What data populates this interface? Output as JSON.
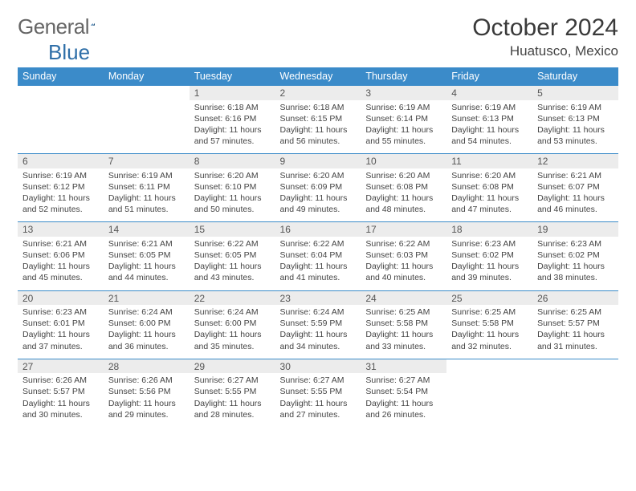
{
  "brand": {
    "part1": "General",
    "part2": "Blue"
  },
  "title": "October 2024",
  "location": "Huatusco, Mexico",
  "colors": {
    "header_bg": "#3b8bc9",
    "header_text": "#ffffff",
    "daynum_bg": "#ececec",
    "row_border": "#3b8bc9",
    "text": "#444444",
    "page_bg": "#ffffff"
  },
  "weekdays": [
    "Sunday",
    "Monday",
    "Tuesday",
    "Wednesday",
    "Thursday",
    "Friday",
    "Saturday"
  ],
  "weeks": [
    [
      null,
      null,
      {
        "n": "1",
        "sr": "Sunrise: 6:18 AM",
        "ss": "Sunset: 6:16 PM",
        "dl": "Daylight: 11 hours and 57 minutes."
      },
      {
        "n": "2",
        "sr": "Sunrise: 6:18 AM",
        "ss": "Sunset: 6:15 PM",
        "dl": "Daylight: 11 hours and 56 minutes."
      },
      {
        "n": "3",
        "sr": "Sunrise: 6:19 AM",
        "ss": "Sunset: 6:14 PM",
        "dl": "Daylight: 11 hours and 55 minutes."
      },
      {
        "n": "4",
        "sr": "Sunrise: 6:19 AM",
        "ss": "Sunset: 6:13 PM",
        "dl": "Daylight: 11 hours and 54 minutes."
      },
      {
        "n": "5",
        "sr": "Sunrise: 6:19 AM",
        "ss": "Sunset: 6:13 PM",
        "dl": "Daylight: 11 hours and 53 minutes."
      }
    ],
    [
      {
        "n": "6",
        "sr": "Sunrise: 6:19 AM",
        "ss": "Sunset: 6:12 PM",
        "dl": "Daylight: 11 hours and 52 minutes."
      },
      {
        "n": "7",
        "sr": "Sunrise: 6:19 AM",
        "ss": "Sunset: 6:11 PM",
        "dl": "Daylight: 11 hours and 51 minutes."
      },
      {
        "n": "8",
        "sr": "Sunrise: 6:20 AM",
        "ss": "Sunset: 6:10 PM",
        "dl": "Daylight: 11 hours and 50 minutes."
      },
      {
        "n": "9",
        "sr": "Sunrise: 6:20 AM",
        "ss": "Sunset: 6:09 PM",
        "dl": "Daylight: 11 hours and 49 minutes."
      },
      {
        "n": "10",
        "sr": "Sunrise: 6:20 AM",
        "ss": "Sunset: 6:08 PM",
        "dl": "Daylight: 11 hours and 48 minutes."
      },
      {
        "n": "11",
        "sr": "Sunrise: 6:20 AM",
        "ss": "Sunset: 6:08 PM",
        "dl": "Daylight: 11 hours and 47 minutes."
      },
      {
        "n": "12",
        "sr": "Sunrise: 6:21 AM",
        "ss": "Sunset: 6:07 PM",
        "dl": "Daylight: 11 hours and 46 minutes."
      }
    ],
    [
      {
        "n": "13",
        "sr": "Sunrise: 6:21 AM",
        "ss": "Sunset: 6:06 PM",
        "dl": "Daylight: 11 hours and 45 minutes."
      },
      {
        "n": "14",
        "sr": "Sunrise: 6:21 AM",
        "ss": "Sunset: 6:05 PM",
        "dl": "Daylight: 11 hours and 44 minutes."
      },
      {
        "n": "15",
        "sr": "Sunrise: 6:22 AM",
        "ss": "Sunset: 6:05 PM",
        "dl": "Daylight: 11 hours and 43 minutes."
      },
      {
        "n": "16",
        "sr": "Sunrise: 6:22 AM",
        "ss": "Sunset: 6:04 PM",
        "dl": "Daylight: 11 hours and 41 minutes."
      },
      {
        "n": "17",
        "sr": "Sunrise: 6:22 AM",
        "ss": "Sunset: 6:03 PM",
        "dl": "Daylight: 11 hours and 40 minutes."
      },
      {
        "n": "18",
        "sr": "Sunrise: 6:23 AM",
        "ss": "Sunset: 6:02 PM",
        "dl": "Daylight: 11 hours and 39 minutes."
      },
      {
        "n": "19",
        "sr": "Sunrise: 6:23 AM",
        "ss": "Sunset: 6:02 PM",
        "dl": "Daylight: 11 hours and 38 minutes."
      }
    ],
    [
      {
        "n": "20",
        "sr": "Sunrise: 6:23 AM",
        "ss": "Sunset: 6:01 PM",
        "dl": "Daylight: 11 hours and 37 minutes."
      },
      {
        "n": "21",
        "sr": "Sunrise: 6:24 AM",
        "ss": "Sunset: 6:00 PM",
        "dl": "Daylight: 11 hours and 36 minutes."
      },
      {
        "n": "22",
        "sr": "Sunrise: 6:24 AM",
        "ss": "Sunset: 6:00 PM",
        "dl": "Daylight: 11 hours and 35 minutes."
      },
      {
        "n": "23",
        "sr": "Sunrise: 6:24 AM",
        "ss": "Sunset: 5:59 PM",
        "dl": "Daylight: 11 hours and 34 minutes."
      },
      {
        "n": "24",
        "sr": "Sunrise: 6:25 AM",
        "ss": "Sunset: 5:58 PM",
        "dl": "Daylight: 11 hours and 33 minutes."
      },
      {
        "n": "25",
        "sr": "Sunrise: 6:25 AM",
        "ss": "Sunset: 5:58 PM",
        "dl": "Daylight: 11 hours and 32 minutes."
      },
      {
        "n": "26",
        "sr": "Sunrise: 6:25 AM",
        "ss": "Sunset: 5:57 PM",
        "dl": "Daylight: 11 hours and 31 minutes."
      }
    ],
    [
      {
        "n": "27",
        "sr": "Sunrise: 6:26 AM",
        "ss": "Sunset: 5:57 PM",
        "dl": "Daylight: 11 hours and 30 minutes."
      },
      {
        "n": "28",
        "sr": "Sunrise: 6:26 AM",
        "ss": "Sunset: 5:56 PM",
        "dl": "Daylight: 11 hours and 29 minutes."
      },
      {
        "n": "29",
        "sr": "Sunrise: 6:27 AM",
        "ss": "Sunset: 5:55 PM",
        "dl": "Daylight: 11 hours and 28 minutes."
      },
      {
        "n": "30",
        "sr": "Sunrise: 6:27 AM",
        "ss": "Sunset: 5:55 PM",
        "dl": "Daylight: 11 hours and 27 minutes."
      },
      {
        "n": "31",
        "sr": "Sunrise: 6:27 AM",
        "ss": "Sunset: 5:54 PM",
        "dl": "Daylight: 11 hours and 26 minutes."
      },
      null,
      null
    ]
  ]
}
